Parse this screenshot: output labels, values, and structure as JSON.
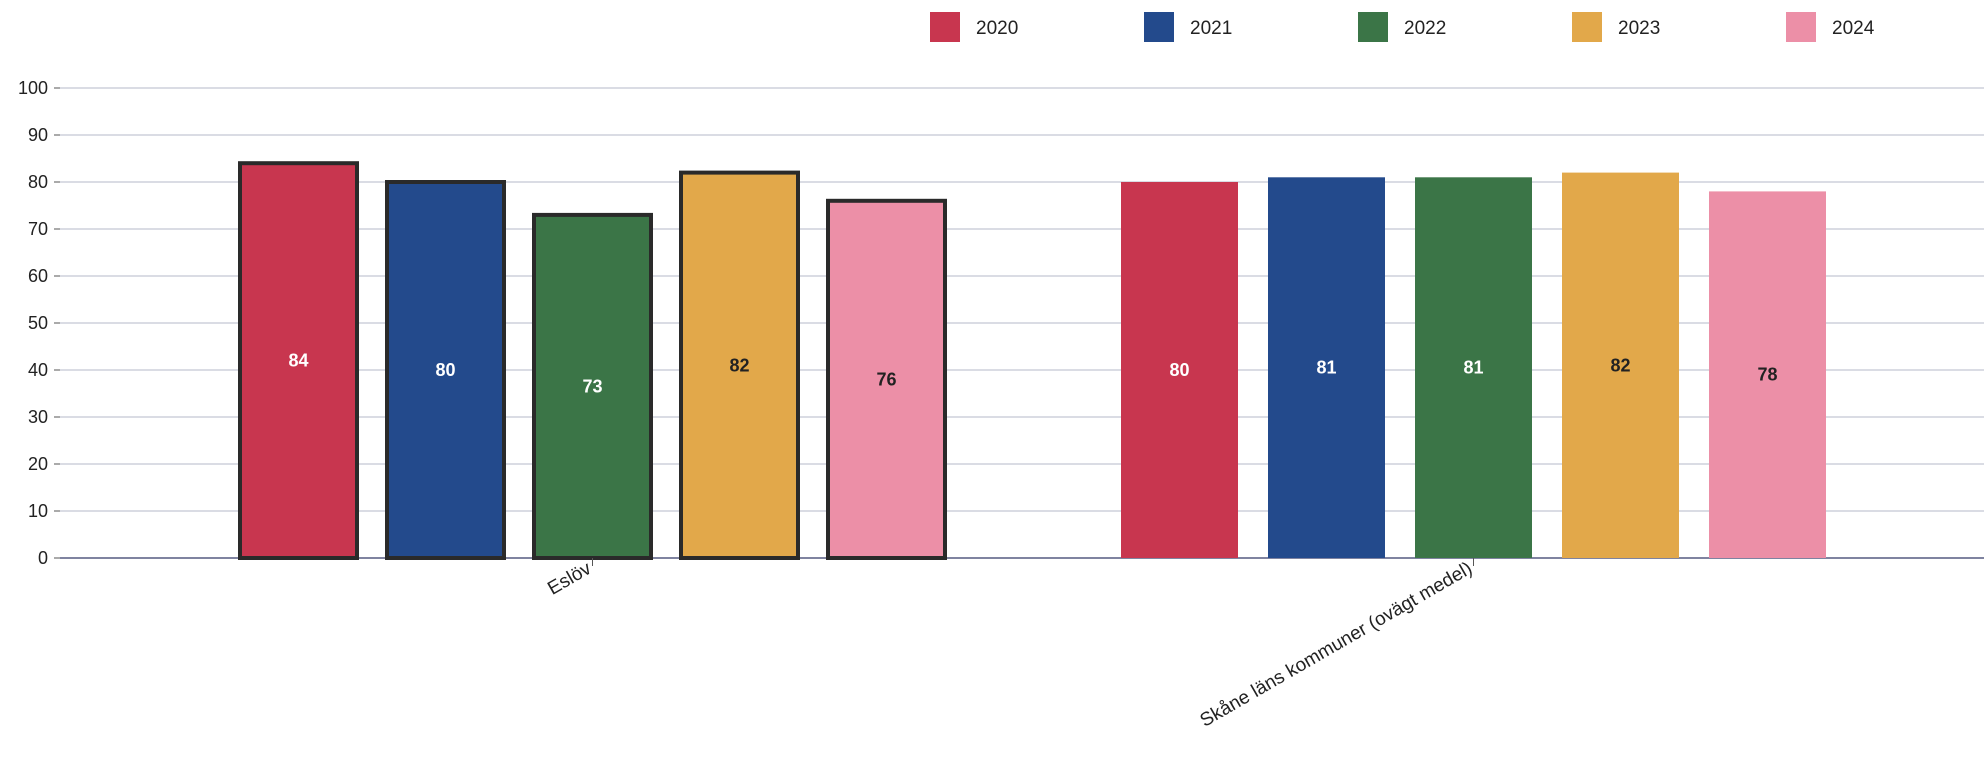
{
  "chart_data": {
    "type": "bar",
    "categories": [
      "Eslöv",
      "Skåne läns kommuner (ovägt medel)"
    ],
    "series": [
      {
        "name": "2020",
        "color": "#c8364f",
        "values": [
          84,
          80
        ]
      },
      {
        "name": "2021",
        "color": "#234a8c",
        "values": [
          80,
          81
        ]
      },
      {
        "name": "2022",
        "color": "#3b7547",
        "values": [
          73,
          81
        ]
      },
      {
        "name": "2023",
        "color": "#e2a84a",
        "values": [
          82,
          82
        ]
      },
      {
        "name": "2024",
        "color": "#ec8fa7",
        "values": [
          76,
          78
        ]
      }
    ],
    "ylim": [
      0,
      100
    ],
    "yticks": [
      0,
      10,
      20,
      30,
      40,
      50,
      60,
      70,
      80,
      90,
      100
    ],
    "grid": true,
    "legend_position": "top",
    "highlighted_category": "Eslöv"
  }
}
